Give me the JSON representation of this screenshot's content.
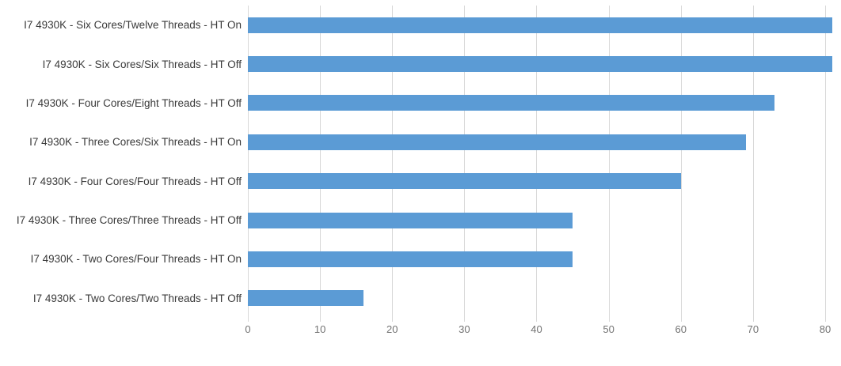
{
  "chart_data": {
    "type": "bar",
    "orientation": "horizontal",
    "title": "",
    "xlabel": "",
    "ylabel": "",
    "categories": [
      "I7 4930K - Six Cores/Twelve Threads - HT On",
      "I7 4930K - Six Cores/Six Threads - HT Off",
      "I7 4930K - Four Cores/Eight Threads - HT Off",
      "I7 4930K - Three Cores/Six Threads - HT On",
      "I7 4930K - Four Cores/Four Threads - HT Off",
      "I7 4930K - Three Cores/Three Threads - HT Off",
      "I7 4930K - Two Cores/Four Threads - HT On",
      "I7 4930K - Two Cores/Two Threads - HT Off"
    ],
    "values": [
      81,
      81,
      73,
      69,
      60,
      45,
      45,
      16
    ],
    "xticks": [
      0,
      10,
      20,
      30,
      40,
      50,
      60,
      70,
      80
    ],
    "xlim": [
      0,
      82.2
    ],
    "grid": true,
    "legend": false,
    "bar_color": "#5b9bd5",
    "gridline_color": "#d9d9d9",
    "category_label_color": "#3a3a3a",
    "tick_label_color": "#737373",
    "background_color": "#ffffff"
  }
}
